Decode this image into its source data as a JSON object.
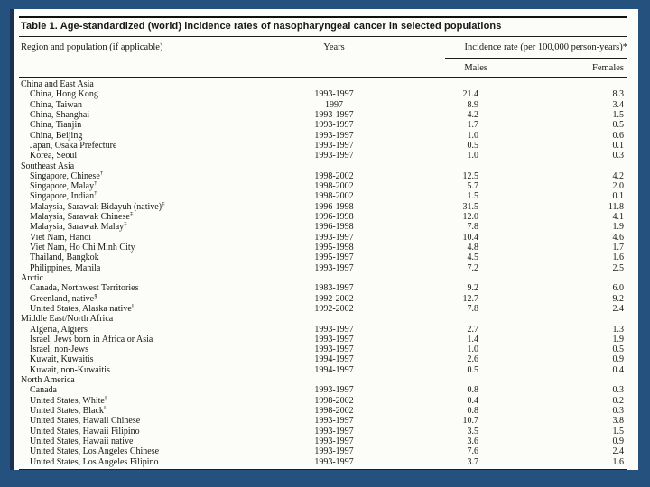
{
  "slide": {
    "background_color": "#25517e",
    "panel_color": "#fcfcf8",
    "edge_shadow_color": "#1a3154"
  },
  "table": {
    "title": "Table 1. Age-standardized (world) incidence rates of nasopharyngeal cancer in selected populations",
    "columns": {
      "region": "Region and population (if applicable)",
      "years": "Years",
      "incidence_spanner": "Incidence rate (per 100,000 person-years)*",
      "males": "Males",
      "females": "Females"
    },
    "rows": [
      {
        "label": "China and East Asia",
        "section": true
      },
      {
        "label": "China, Hong Kong",
        "years": "1993-1997",
        "males": "21.4",
        "females": "8.3"
      },
      {
        "label": "China, Taiwan",
        "years": "1997",
        "males": "8.9",
        "females": "3.4"
      },
      {
        "label": "China, Shanghai",
        "years": "1993-1997",
        "males": "4.2",
        "females": "1.5"
      },
      {
        "label": "China, Tianjin",
        "years": "1993-1997",
        "males": "1.7",
        "females": "0.5"
      },
      {
        "label": "China, Beijing",
        "years": "1993-1997",
        "males": "1.0",
        "females": "0.6"
      },
      {
        "label": "Japan, Osaka Prefecture",
        "years": "1993-1997",
        "males": "0.5",
        "females": "0.1"
      },
      {
        "label": "Korea, Seoul",
        "years": "1993-1997",
        "males": "1.0",
        "females": "0.3"
      },
      {
        "label": "Southeast Asia",
        "section": true
      },
      {
        "label": "Singapore, Chinese",
        "sup": "†",
        "years": "1998-2002",
        "males": "12.5",
        "females": "4.2"
      },
      {
        "label": "Singapore, Malay",
        "sup": "†",
        "years": "1998-2002",
        "males": "5.7",
        "females": "2.0"
      },
      {
        "label": "Singapore, Indian",
        "sup": "†",
        "years": "1998-2002",
        "males": "1.5",
        "females": "0.1"
      },
      {
        "label": "Malaysia, Sarawak Bidayuh (native)",
        "sup": "‡",
        "years": "1996-1998",
        "males": "31.5",
        "females": "11.8"
      },
      {
        "label": "Malaysia, Sarawak Chinese",
        "sup": "‡",
        "years": "1996-1998",
        "males": "12.0",
        "females": "4.1"
      },
      {
        "label": "Malaysia, Sarawak Malay",
        "sup": "‡",
        "years": "1996-1998",
        "males": "7.8",
        "females": "1.9"
      },
      {
        "label": "Viet Nam, Hanoi",
        "years": "1993-1997",
        "males": "10.4",
        "females": "4.6"
      },
      {
        "label": "Viet Nam, Ho Chi Minh City",
        "years": "1995-1998",
        "males": "4.8",
        "females": "1.7"
      },
      {
        "label": "Thailand, Bangkok",
        "years": "1995-1997",
        "males": "4.5",
        "females": "1.6"
      },
      {
        "label": "Philippines, Manila",
        "years": "1993-1997",
        "males": "7.2",
        "females": "2.5"
      },
      {
        "label": "Arctic",
        "section": true
      },
      {
        "label": "Canada, Northwest Territories",
        "years": "1983-1997",
        "males": "9.2",
        "females": "6.0"
      },
      {
        "label": "Greenland, native",
        "sup": "§",
        "years": "1992-2002",
        "males": "12.7",
        "females": "9.2"
      },
      {
        "label": "United States, Alaska native",
        "sup": "‖",
        "years": "1992-2002",
        "males": "7.8",
        "females": "2.4"
      },
      {
        "label": "Middle East/North Africa",
        "section": true
      },
      {
        "label": "Algeria, Algiers",
        "years": "1993-1997",
        "males": "2.7",
        "females": "1.3"
      },
      {
        "label": "Israel, Jews born in Africa or Asia",
        "years": "1993-1997",
        "males": "1.4",
        "females": "1.9"
      },
      {
        "label": "Israel, non-Jews",
        "years": "1993-1997",
        "males": "1.0",
        "females": "0.5"
      },
      {
        "label": "Kuwait, Kuwaitis",
        "years": "1994-1997",
        "males": "2.6",
        "females": "0.9"
      },
      {
        "label": "Kuwait, non-Kuwaitis",
        "years": "1994-1997",
        "males": "0.5",
        "females": "0.4"
      },
      {
        "label": "North America",
        "section": true
      },
      {
        "label": "Canada",
        "years": "1993-1997",
        "males": "0.8",
        "females": "0.3"
      },
      {
        "label": "United States, White",
        "sup": "‖",
        "years": "1998-2002",
        "males": "0.4",
        "females": "0.2"
      },
      {
        "label": "United States, Black",
        "sup": "‖",
        "years": "1998-2002",
        "males": "0.8",
        "females": "0.3"
      },
      {
        "label": "United States, Hawaii Chinese",
        "years": "1993-1997",
        "males": "10.7",
        "females": "3.8"
      },
      {
        "label": "United States, Hawaii Filipino",
        "years": "1993-1997",
        "males": "3.5",
        "females": "1.5"
      },
      {
        "label": "United States, Hawaii native",
        "years": "1993-1997",
        "males": "3.6",
        "females": "0.9"
      },
      {
        "label": "United States, Los Angeles Chinese",
        "years": "1993-1997",
        "males": "7.6",
        "females": "2.4"
      },
      {
        "label": "United States, Los Angeles Filipino",
        "years": "1993-1997",
        "males": "3.7",
        "females": "1.6"
      }
    ]
  }
}
